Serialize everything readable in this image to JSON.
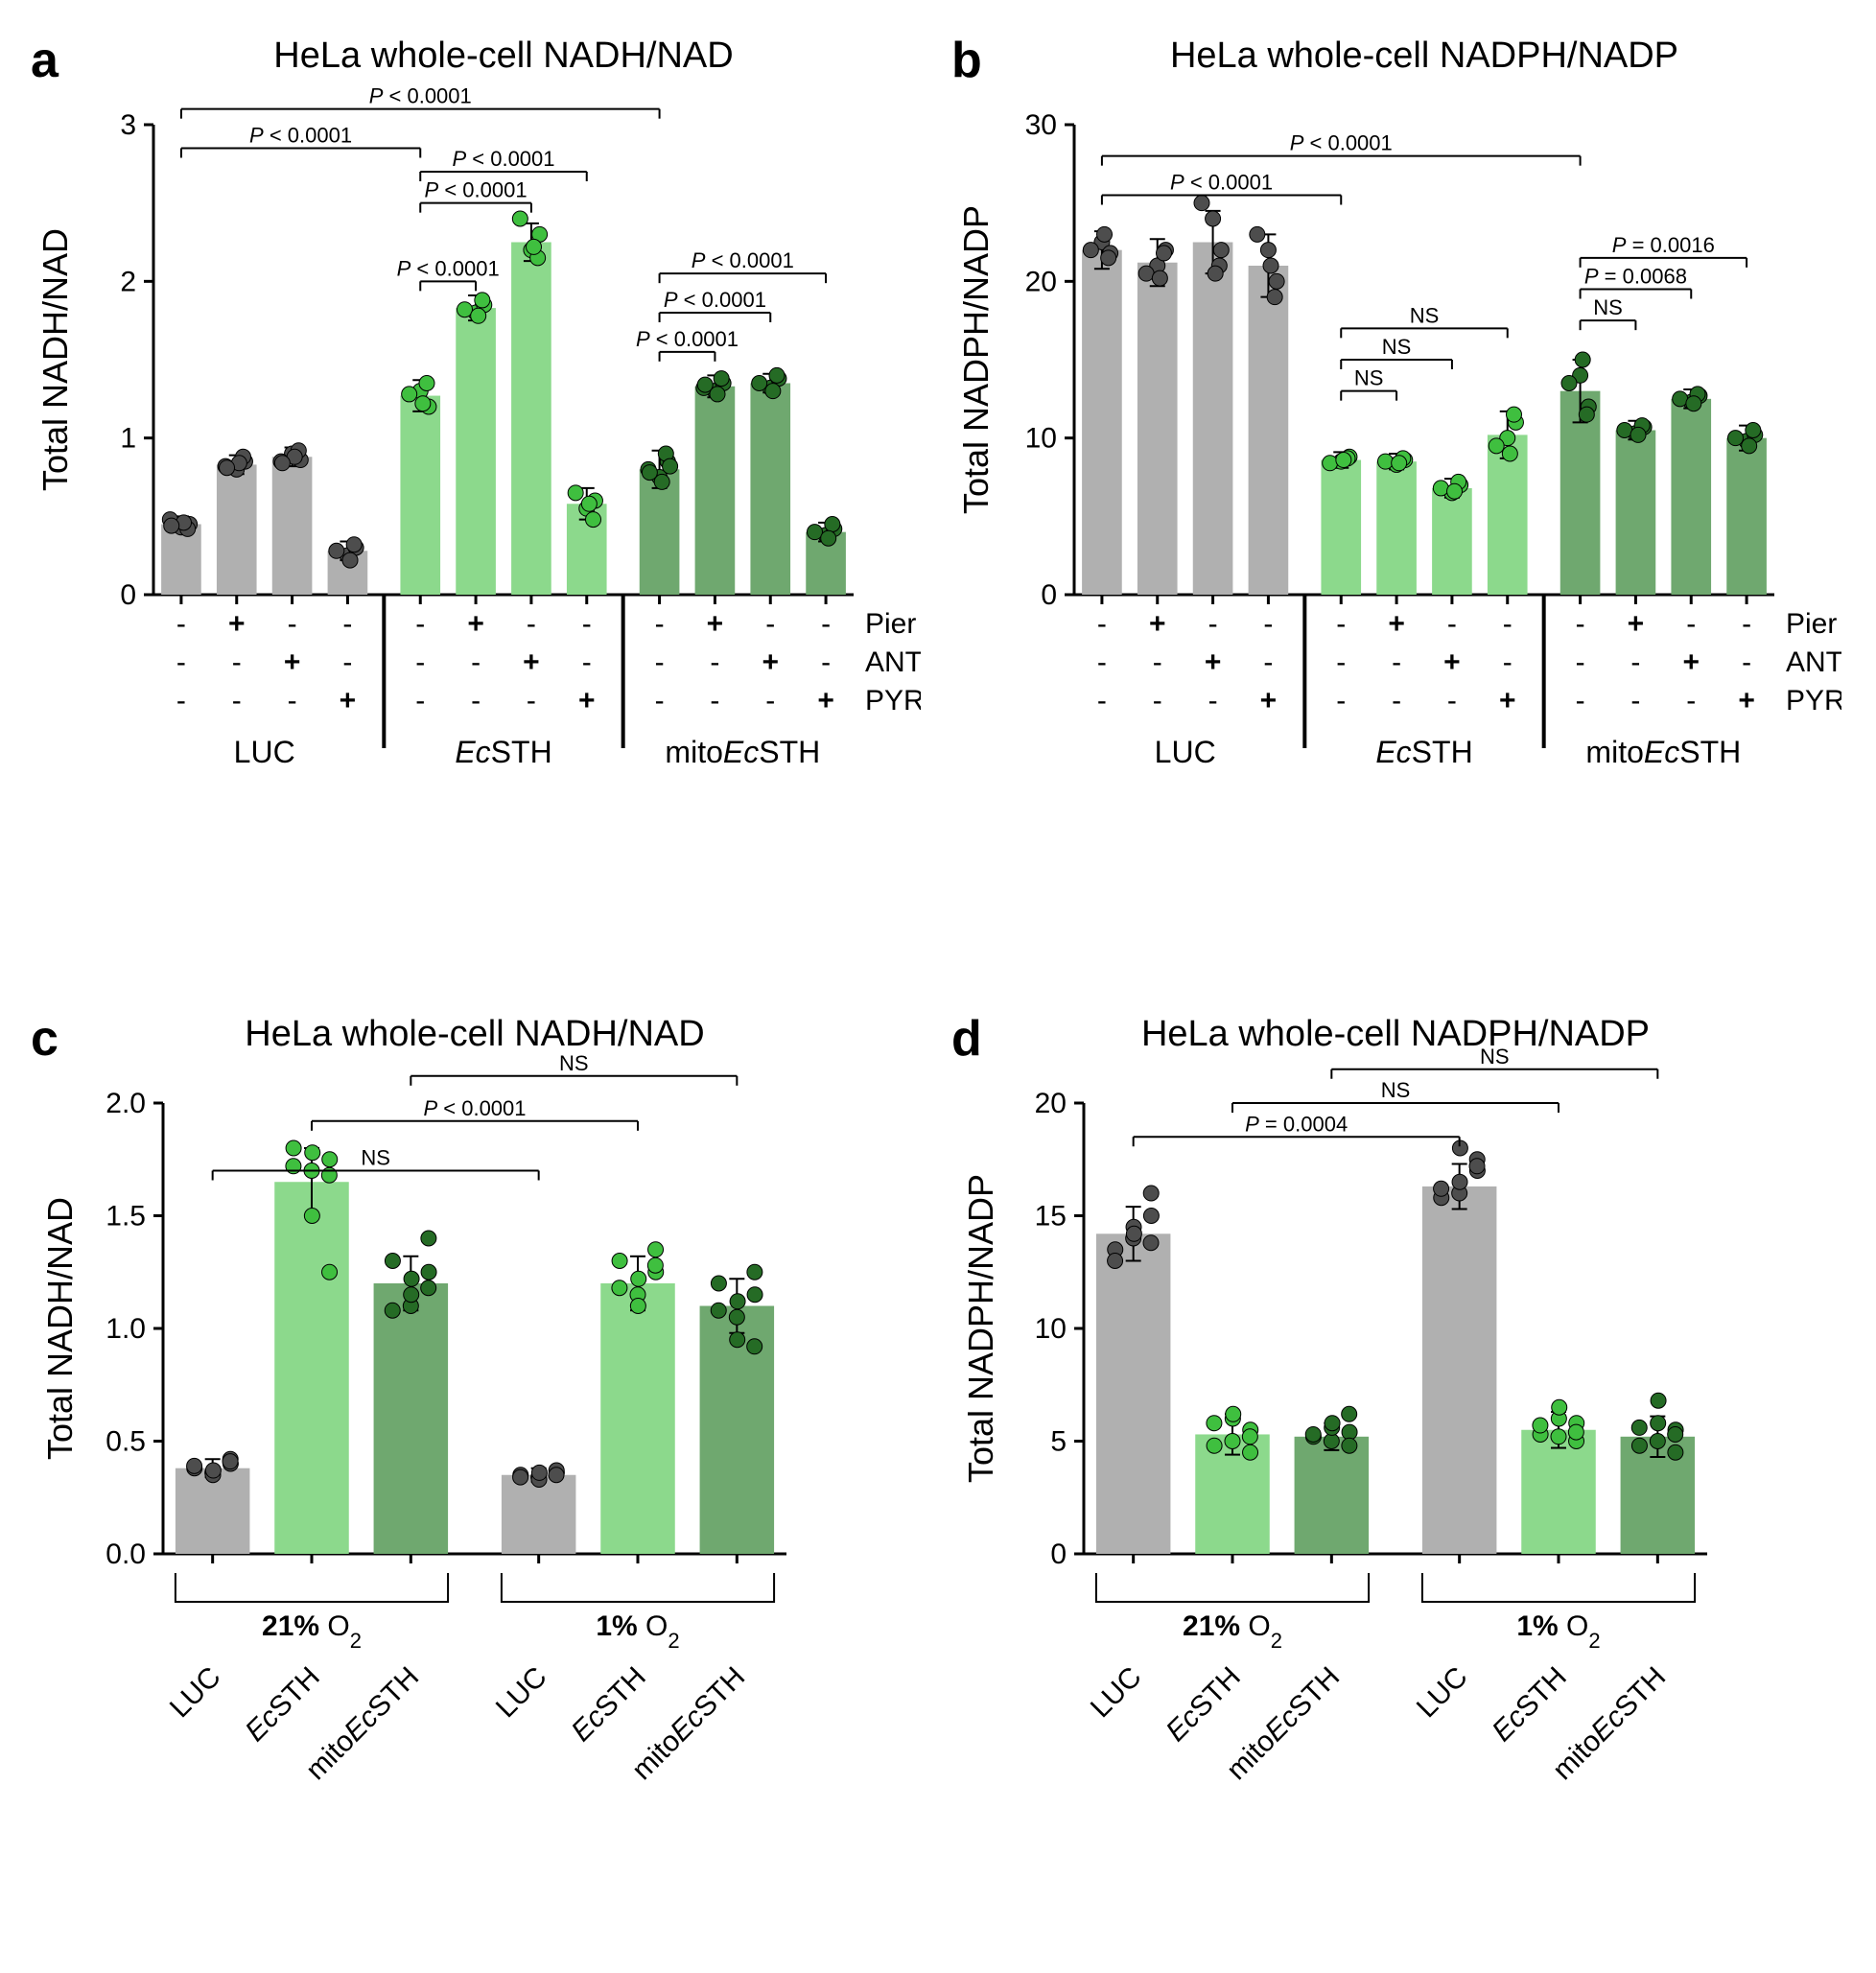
{
  "colors": {
    "luc_bar": "#b0b0b0",
    "luc_dot": "#4d4d4d",
    "ecsth_bar": "#8cd98c",
    "ecsth_dot": "#3fbf3f",
    "mito_bar": "#6fa86f",
    "mito_dot": "#256b25",
    "axis": "#000000",
    "errbar": "#000000",
    "bg": "#ffffff"
  },
  "panelA": {
    "letter": "a",
    "title_html": "HeLa whole-cell NADH/NAD<sup>+</sup>",
    "ylabel_html": "Total NADH/NAD<sup>+</sup>",
    "ylim": [
      0,
      3
    ],
    "yticks": [
      0,
      1,
      2,
      3
    ],
    "row_labels": [
      "Pier",
      "ANT",
      "PYR"
    ],
    "group_labels": [
      "LUC",
      "EcSTH",
      "mitoEcSTH"
    ],
    "group_labels_html": [
      "LUC",
      "<tspan font-style='italic'>Ec</tspan>STH",
      "mito<tspan font-style='italic'>Ec</tspan>STH"
    ],
    "bars": [
      {
        "group": 0,
        "sub": 0,
        "val": 0.45,
        "sd": 0.05,
        "treat": [
          "-",
          "-",
          "-"
        ],
        "pts": [
          0.43,
          0.45,
          0.48,
          0.42,
          0.46,
          0.44
        ]
      },
      {
        "group": 0,
        "sub": 1,
        "val": 0.83,
        "sd": 0.06,
        "treat": [
          "+",
          "-",
          "-"
        ],
        "pts": [
          0.8,
          0.85,
          0.82,
          0.88,
          0.84,
          0.81
        ]
      },
      {
        "group": 0,
        "sub": 2,
        "val": 0.88,
        "sd": 0.06,
        "treat": [
          "-",
          "+",
          "-"
        ],
        "pts": [
          0.9,
          0.86,
          0.85,
          0.92,
          0.88,
          0.84
        ]
      },
      {
        "group": 0,
        "sub": 3,
        "val": 0.28,
        "sd": 0.06,
        "treat": [
          "-",
          "-",
          "+"
        ],
        "pts": [
          0.25,
          0.3,
          0.28,
          0.32,
          0.22
        ]
      },
      {
        "group": 1,
        "sub": 0,
        "val": 1.27,
        "sd": 0.1,
        "treat": [
          "-",
          "-",
          "-"
        ],
        "pts": [
          1.3,
          1.2,
          1.28,
          1.35,
          1.22
        ]
      },
      {
        "group": 1,
        "sub": 1,
        "val": 1.83,
        "sd": 0.08,
        "treat": [
          "+",
          "-",
          "-"
        ],
        "pts": [
          1.8,
          1.85,
          1.82,
          1.88,
          1.78
        ]
      },
      {
        "group": 1,
        "sub": 2,
        "val": 2.25,
        "sd": 0.12,
        "treat": [
          "-",
          "+",
          "-"
        ],
        "pts": [
          2.2,
          2.3,
          2.4,
          2.15,
          2.22
        ]
      },
      {
        "group": 1,
        "sub": 3,
        "val": 0.58,
        "sd": 0.1,
        "treat": [
          "-",
          "-",
          "+"
        ],
        "pts": [
          0.55,
          0.6,
          0.65,
          0.48,
          0.58
        ]
      },
      {
        "group": 2,
        "sub": 0,
        "val": 0.8,
        "sd": 0.12,
        "treat": [
          "-",
          "-",
          "-"
        ],
        "pts": [
          0.75,
          0.85,
          0.8,
          0.9,
          0.72,
          0.78,
          0.82
        ]
      },
      {
        "group": 2,
        "sub": 1,
        "val": 1.33,
        "sd": 0.07,
        "treat": [
          "+",
          "-",
          "-"
        ],
        "pts": [
          1.3,
          1.35,
          1.32,
          1.38,
          1.28,
          1.34
        ]
      },
      {
        "group": 2,
        "sub": 2,
        "val": 1.35,
        "sd": 0.06,
        "treat": [
          "-",
          "+",
          "-"
        ],
        "pts": [
          1.32,
          1.38,
          1.35,
          1.4,
          1.3
        ]
      },
      {
        "group": 2,
        "sub": 3,
        "val": 0.4,
        "sd": 0.06,
        "treat": [
          "-",
          "-",
          "+"
        ],
        "pts": [
          0.38,
          0.42,
          0.4,
          0.45,
          0.36
        ]
      }
    ],
    "sig_lines": [
      {
        "from": 0,
        "to": 4,
        "y": 2.85,
        "label": "P < 0.0001",
        "italic_p": true
      },
      {
        "from": 0,
        "to": 8,
        "y": 3.1,
        "label": "P < 0.0001",
        "italic_p": true
      },
      {
        "from": 4,
        "to": 5,
        "y": 2.0,
        "label": "P < 0.0001",
        "italic_p": true
      },
      {
        "from": 4,
        "to": 6,
        "y": 2.5,
        "label": "P < 0.0001",
        "italic_p": true
      },
      {
        "from": 4,
        "to": 7,
        "y": 2.7,
        "label": "P < 0.0001",
        "italic_p": true
      },
      {
        "from": 8,
        "to": 9,
        "y": 1.55,
        "label": "P < 0.0001",
        "italic_p": true
      },
      {
        "from": 8,
        "to": 10,
        "y": 1.8,
        "label": "P < 0.0001",
        "italic_p": true
      },
      {
        "from": 8,
        "to": 11,
        "y": 2.05,
        "label": "P < 0.0001",
        "italic_p": true
      }
    ]
  },
  "panelB": {
    "letter": "b",
    "title_html": "HeLa whole-cell NADPH/NADP<sup>+</sup>",
    "ylabel_html": "Total NADPH/NADP<sup>+</sup>",
    "ylim": [
      0,
      30
    ],
    "yticks": [
      0,
      10,
      20,
      30
    ],
    "row_labels": [
      "Pier",
      "ANT",
      "PYR"
    ],
    "group_labels_html": [
      "LUC",
      "<tspan font-style='italic'>Ec</tspan>STH",
      "mito<tspan font-style='italic'>Ec</tspan>STH"
    ],
    "bars": [
      {
        "group": 0,
        "sub": 0,
        "val": 22.0,
        "sd": 1.2,
        "treat": [
          "-",
          "-",
          "-"
        ],
        "pts": [
          22.5,
          21.8,
          22.0,
          21.5,
          23.0
        ]
      },
      {
        "group": 0,
        "sub": 1,
        "val": 21.2,
        "sd": 1.5,
        "treat": [
          "+",
          "-",
          "-"
        ],
        "pts": [
          21.0,
          22.0,
          20.5,
          21.8,
          20.2
        ]
      },
      {
        "group": 0,
        "sub": 2,
        "val": 22.5,
        "sd": 2.0,
        "treat": [
          "-",
          "+",
          "-"
        ],
        "pts": [
          24.0,
          22.0,
          25.0,
          21.0,
          20.5
        ]
      },
      {
        "group": 0,
        "sub": 3,
        "val": 21.0,
        "sd": 2.0,
        "treat": [
          "-",
          "-",
          "+"
        ],
        "pts": [
          22.0,
          20.0,
          23.0,
          19.0,
          21.0
        ]
      },
      {
        "group": 1,
        "sub": 0,
        "val": 8.6,
        "sd": 0.5,
        "treat": [
          "-",
          "-",
          "-"
        ],
        "pts": [
          8.5,
          8.8,
          8.4,
          8.7,
          8.6
        ]
      },
      {
        "group": 1,
        "sub": 1,
        "val": 8.5,
        "sd": 0.5,
        "treat": [
          "+",
          "-",
          "-"
        ],
        "pts": [
          8.3,
          8.6,
          8.5,
          8.7,
          8.4
        ]
      },
      {
        "group": 1,
        "sub": 2,
        "val": 6.8,
        "sd": 0.6,
        "treat": [
          "-",
          "+",
          "-"
        ],
        "pts": [
          6.5,
          7.0,
          6.8,
          7.2,
          6.6
        ]
      },
      {
        "group": 1,
        "sub": 3,
        "val": 10.2,
        "sd": 1.5,
        "treat": [
          "-",
          "-",
          "+"
        ],
        "pts": [
          10.0,
          11.0,
          9.5,
          11.5,
          9.0
        ]
      },
      {
        "group": 2,
        "sub": 0,
        "val": 13.0,
        "sd": 2.0,
        "treat": [
          "-",
          "-",
          "-"
        ],
        "pts": [
          14.0,
          12.0,
          13.5,
          11.5,
          15.0
        ]
      },
      {
        "group": 2,
        "sub": 1,
        "val": 10.5,
        "sd": 0.6,
        "treat": [
          "+",
          "-",
          "-"
        ],
        "pts": [
          10.3,
          10.7,
          10.5,
          10.8,
          10.2
        ]
      },
      {
        "group": 2,
        "sub": 2,
        "val": 12.5,
        "sd": 0.6,
        "treat": [
          "-",
          "+",
          "-"
        ],
        "pts": [
          12.3,
          12.7,
          12.5,
          12.8,
          12.2
        ]
      },
      {
        "group": 2,
        "sub": 3,
        "val": 10.0,
        "sd": 0.8,
        "treat": [
          "-",
          "-",
          "+"
        ],
        "pts": [
          9.8,
          10.2,
          10.0,
          10.5,
          9.5
        ]
      }
    ],
    "sig_lines": [
      {
        "from": 0,
        "to": 4,
        "y": 25.5,
        "label": "P < 0.0001",
        "italic_p": true
      },
      {
        "from": 0,
        "to": 8,
        "y": 28.0,
        "label": "P < 0.0001",
        "italic_p": true
      },
      {
        "from": 4,
        "to": 5,
        "y": 13.0,
        "label": "NS"
      },
      {
        "from": 4,
        "to": 6,
        "y": 15.0,
        "label": "NS"
      },
      {
        "from": 4,
        "to": 7,
        "y": 17.0,
        "label": "NS"
      },
      {
        "from": 8,
        "to": 9,
        "y": 17.5,
        "label": "NS"
      },
      {
        "from": 8,
        "to": 10,
        "y": 19.5,
        "label": "P = 0.0068",
        "italic_p": true
      },
      {
        "from": 8,
        "to": 11,
        "y": 21.5,
        "label": "P = 0.0016",
        "italic_p": true
      }
    ]
  },
  "panelC": {
    "letter": "c",
    "title_html": "HeLa whole-cell NADH/NAD<sup>+</sup>",
    "ylabel_html": "Total NADH/NAD<sup>+</sup>",
    "ylim": [
      0,
      2.0
    ],
    "yticks": [
      0,
      0.5,
      1.0,
      1.5,
      2.0
    ],
    "cond_labels_html": [
      "<tspan font-weight='bold'>21%</tspan> O<tspan baseline-shift='sub' font-size='22'>2</tspan>",
      "<tspan font-weight='bold'>1%</tspan> O<tspan baseline-shift='sub' font-size='22'>2</tspan>"
    ],
    "xlabels_html": [
      "LUC",
      "<tspan font-style='italic'>Ec</tspan>STH",
      "mito<tspan font-style='italic'>Ec</tspan>STH",
      "LUC",
      "<tspan font-style='italic'>Ec</tspan>STH",
      "mito<tspan font-style='italic'>Ec</tspan>STH"
    ],
    "bars": [
      {
        "idx": 0,
        "type": "luc",
        "val": 0.38,
        "sd": 0.04,
        "pts": [
          0.36,
          0.4,
          0.38,
          0.35,
          0.42,
          0.39,
          0.37,
          0.41
        ]
      },
      {
        "idx": 1,
        "type": "ecsth",
        "val": 1.65,
        "sd": 0.15,
        "pts": [
          1.7,
          1.75,
          1.8,
          1.5,
          1.25,
          1.72,
          1.78,
          1.68
        ]
      },
      {
        "idx": 2,
        "type": "mito",
        "val": 1.2,
        "sd": 0.12,
        "pts": [
          1.1,
          1.25,
          1.3,
          1.15,
          1.4,
          1.08,
          1.22,
          1.18
        ]
      },
      {
        "idx": 3,
        "type": "luc",
        "val": 0.35,
        "sd": 0.03,
        "pts": [
          0.34,
          0.36,
          0.35,
          0.33,
          0.37,
          0.34,
          0.36,
          0.35
        ]
      },
      {
        "idx": 4,
        "type": "ecsth",
        "val": 1.2,
        "sd": 0.12,
        "pts": [
          1.15,
          1.25,
          1.3,
          1.1,
          1.35,
          1.18,
          1.22,
          1.28
        ]
      },
      {
        "idx": 5,
        "type": "mito",
        "val": 1.1,
        "sd": 0.12,
        "pts": [
          1.05,
          1.15,
          1.2,
          0.95,
          1.25,
          1.08,
          1.12,
          0.92
        ]
      }
    ],
    "sig_lines": [
      {
        "from": 0,
        "to": 3,
        "y": 1.7,
        "label": "NS"
      },
      {
        "from": 1,
        "to": 4,
        "y": 1.92,
        "label": "P < 0.0001",
        "italic_p": true
      },
      {
        "from": 2,
        "to": 5,
        "y": 2.12,
        "label": "NS"
      }
    ]
  },
  "panelD": {
    "letter": "d",
    "title_html": "HeLa whole-cell NADPH/NADP<sup>+</sup>",
    "ylabel_html": "Total NADPH/NADP<sup>+</sup>",
    "ylim": [
      0,
      20
    ],
    "yticks": [
      0,
      5,
      10,
      15,
      20
    ],
    "cond_labels_html": [
      "<tspan font-weight='bold'>21%</tspan> O<tspan baseline-shift='sub' font-size='22'>2</tspan>",
      "<tspan font-weight='bold'>1%</tspan> O<tspan baseline-shift='sub' font-size='22'>2</tspan>"
    ],
    "xlabels_html": [
      "LUC",
      "<tspan font-style='italic'>Ec</tspan>STH",
      "mito<tspan font-style='italic'>Ec</tspan>STH",
      "LUC",
      "<tspan font-style='italic'>Ec</tspan>STH",
      "mito<tspan font-style='italic'>Ec</tspan>STH"
    ],
    "bars": [
      {
        "idx": 0,
        "type": "luc",
        "val": 14.2,
        "sd": 1.2,
        "pts": [
          14.0,
          15.0,
          13.5,
          14.5,
          16.0,
          13.0,
          14.2,
          13.8
        ]
      },
      {
        "idx": 1,
        "type": "ecsth",
        "val": 5.3,
        "sd": 0.9,
        "pts": [
          5.0,
          5.5,
          4.8,
          6.0,
          4.5,
          5.8,
          6.2,
          5.2
        ]
      },
      {
        "idx": 2,
        "type": "mito",
        "val": 5.2,
        "sd": 0.6,
        "pts": [
          5.0,
          5.4,
          5.2,
          5.6,
          4.8,
          5.3,
          5.8,
          6.2
        ]
      },
      {
        "idx": 3,
        "type": "luc",
        "val": 16.3,
        "sd": 1.0,
        "pts": [
          16.0,
          17.0,
          15.8,
          16.5,
          17.5,
          16.2,
          18.0,
          17.2
        ]
      },
      {
        "idx": 4,
        "type": "ecsth",
        "val": 5.5,
        "sd": 0.8,
        "pts": [
          5.2,
          5.8,
          5.3,
          6.0,
          5.0,
          5.7,
          6.5,
          5.4
        ]
      },
      {
        "idx": 5,
        "type": "mito",
        "val": 5.2,
        "sd": 0.9,
        "pts": [
          5.0,
          5.5,
          4.8,
          5.8,
          4.5,
          5.6,
          6.8,
          5.3
        ]
      }
    ],
    "sig_lines": [
      {
        "from": 0,
        "to": 3,
        "y": 18.5,
        "label": "P = 0.0004",
        "italic_p": true
      },
      {
        "from": 1,
        "to": 4,
        "y": 20.0,
        "label": "NS"
      },
      {
        "from": 2,
        "to": 5,
        "y": 21.5,
        "label": "NS"
      }
    ]
  }
}
